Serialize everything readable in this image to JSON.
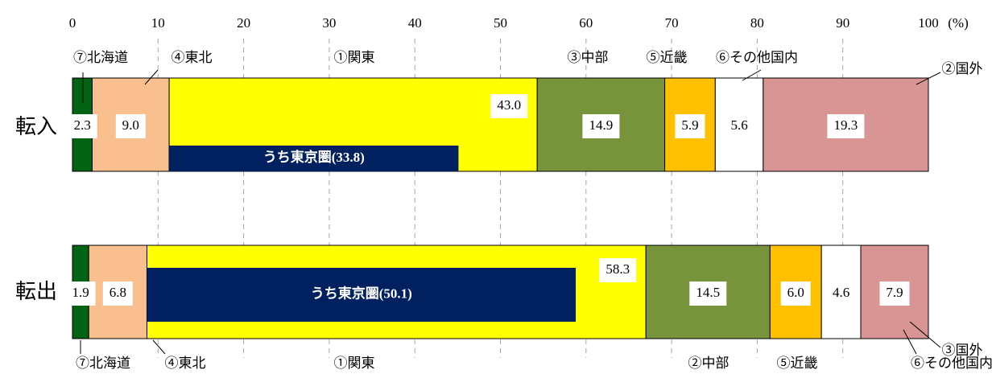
{
  "chart_data": {
    "type": "stacked-barh",
    "categories": [
      "転入",
      "転出"
    ],
    "xlim": [
      0,
      100
    ],
    "xticks": [
      0,
      10,
      20,
      30,
      40,
      50,
      60,
      70,
      80,
      90,
      100
    ],
    "unit": "(%)",
    "grid": true,
    "series": [
      {
        "labels": [
          "⑦北海道",
          "⑦北海道"
        ],
        "color": "#006414",
        "values": [
          2.3,
          1.9
        ],
        "value_labels": [
          "2.3",
          "1.9"
        ]
      },
      {
        "labels": [
          "④東北",
          "④東北"
        ],
        "color": "#fabf8f",
        "values": [
          9.0,
          6.8
        ],
        "value_labels": [
          "9.0",
          "6.8"
        ]
      },
      {
        "labels": [
          "①関東",
          "①関東"
        ],
        "color": "#ffff00",
        "values": [
          43.0,
          58.3
        ],
        "value_labels": [
          "43.0",
          "58.3"
        ]
      },
      {
        "labels": [
          "③中部",
          "②中部"
        ],
        "color": "#77933c",
        "values": [
          14.9,
          14.5
        ],
        "value_labels": [
          "14.9",
          "14.5"
        ]
      },
      {
        "labels": [
          "⑤近畿",
          "⑤近畿"
        ],
        "color": "#ffc000",
        "values": [
          5.9,
          6.0
        ],
        "value_labels": [
          "5.9",
          "6.0"
        ]
      },
      {
        "labels": [
          "⑥その他国内",
          "⑥その他国内"
        ],
        "color": "#ffffff",
        "values": [
          5.6,
          4.6
        ],
        "value_labels": [
          "5.6",
          "4.6"
        ]
      },
      {
        "labels": [
          "②国外",
          "③国外"
        ],
        "color": "#d99594",
        "values": [
          19.3,
          7.9
        ],
        "value_labels": [
          "19.3",
          "7.9"
        ]
      }
    ],
    "inset": {
      "color": "#002060",
      "values": [
        33.8,
        50.1
      ],
      "value_labels": [
        "うち東京圏(33.8)",
        "うち東京圏(50.1)"
      ]
    }
  }
}
